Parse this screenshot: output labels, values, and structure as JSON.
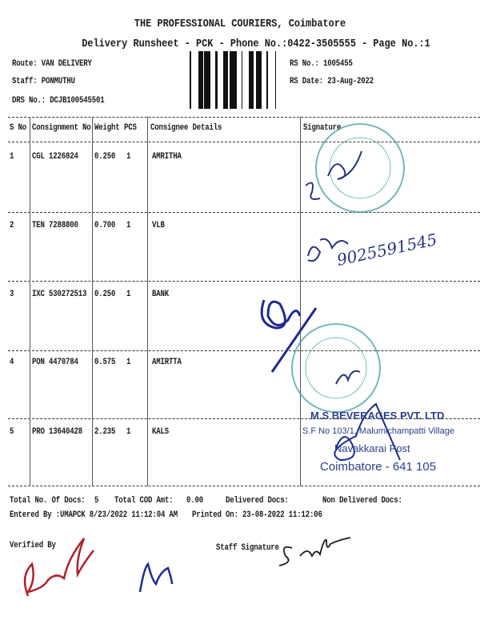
{
  "header": {
    "company": "THE PROFESSIONAL COURIERS, Coimbatore",
    "subtitle": "Delivery Runsheet - PCK - Phone No.:0422-3505555 - Page No.:1",
    "route": "Route: VAN DELIVERY",
    "staff": "Staff: PONMUTHU",
    "drs_no": "DRS No.: DCJB100545501",
    "rs_no": "RS No.: 1005455",
    "rs_date": "RS Date: 23-Aug-2022"
  },
  "table": {
    "columns": [
      "S No",
      "Consignment No",
      "Weight",
      "PCS",
      "Consignee Details",
      "Signature"
    ],
    "rows": [
      {
        "sno": "1",
        "consignment": "CGL 1226824",
        "weight": "0.250",
        "pcs": "1",
        "consignee": "AMRITHA"
      },
      {
        "sno": "2",
        "consignment": "TEN 7288800",
        "weight": "0.700",
        "pcs": "1",
        "consignee": "VLB"
      },
      {
        "sno": "3",
        "consignment": "IXC 530272513",
        "weight": "0.250",
        "pcs": "1",
        "consignee": "BANK"
      },
      {
        "sno": "4",
        "consignment": "PON 4470784",
        "weight": "0.575",
        "pcs": "1",
        "consignee": "AMIRTTA"
      },
      {
        "sno": "5",
        "consignment": "PRO 13640428",
        "weight": "2.235",
        "pcs": "1",
        "consignee": "KALS"
      }
    ]
  },
  "handwritten_phone": "9025591545",
  "stamp_beverages": {
    "line1": "M.S BEVERAGES PVT. LTD",
    "line2": "S.F No 103/1, Malumichampatti Village",
    "line3": "Navakkarai Post",
    "line4": "Coimbatore - 641 105"
  },
  "footer": {
    "total_docs_label": "Total No. Of Docs:",
    "total_docs": "5",
    "total_cod_label": "Total COD Amt:",
    "total_cod": "0.00",
    "delivered_label": "Delivered Docs:",
    "non_delivered_label": "Non Delivered Docs:",
    "entered_by": "Entered By :UMAPCK 8/23/2022 11:12:04 AM",
    "printed_on": "Printed On: 23-08-2022 11:12:06",
    "verified_by": "Verified By",
    "staff_signature": "Staff Signature"
  },
  "colors": {
    "ink": "#1a1a1a",
    "stamp_blue": "#2b3f8a",
    "stamp_teal": "#3a9a9a",
    "signature_red": "#b0202a"
  }
}
